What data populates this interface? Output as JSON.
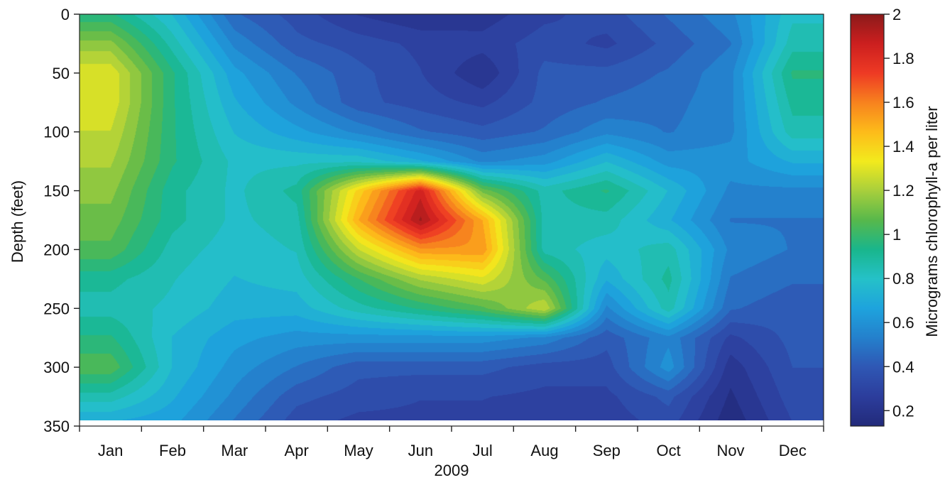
{
  "chart_data": {
    "type": "heatmap",
    "title": "",
    "xlabel": "2009",
    "ylabel": "Depth (feet)",
    "colorbar_label": "Micrograms chlorophyll-a per liter",
    "x_ticks": [
      "Jan",
      "Feb",
      "Mar",
      "Apr",
      "May",
      "Jun",
      "Jul",
      "Aug",
      "Sep",
      "Oct",
      "Nov",
      "Dec"
    ],
    "y_ticks": [
      0,
      50,
      100,
      150,
      200,
      250,
      300,
      350
    ],
    "ylim": [
      0,
      350
    ],
    "y_inverted": true,
    "colorbar_ticks": [
      0.2,
      0.4,
      0.6,
      0.8,
      1,
      1.2,
      1.4,
      1.6,
      1.8,
      2
    ],
    "colorbar_range": [
      0.13,
      2.0
    ],
    "colormap": [
      "#222a7a",
      "#2c3d9c",
      "#2f57b4",
      "#2480cc",
      "#1ea3dd",
      "#25c1c8",
      "#19b68c",
      "#57b84b",
      "#a8cf3c",
      "#f2ea1d",
      "#fdbb1a",
      "#f7821e",
      "#ee3a24",
      "#cc1f1f",
      "#8b1a1a"
    ],
    "depths": [
      0,
      25,
      50,
      75,
      100,
      125,
      150,
      175,
      200,
      225,
      250,
      275,
      300,
      325,
      345
    ],
    "months": [
      "Jan",
      "Feb",
      "Mar",
      "Apr",
      "May",
      "Jun",
      "Jul",
      "Aug",
      "Sep",
      "Oct",
      "Nov",
      "Dec"
    ],
    "values": [
      [
        0.95,
        0.75,
        0.45,
        0.35,
        0.25,
        0.2,
        0.22,
        0.3,
        0.35,
        0.45,
        0.55,
        0.8
      ],
      [
        1.15,
        0.85,
        0.55,
        0.4,
        0.35,
        0.3,
        0.28,
        0.35,
        0.3,
        0.4,
        0.5,
        0.85
      ],
      [
        1.3,
        0.95,
        0.65,
        0.5,
        0.4,
        0.32,
        0.2,
        0.4,
        0.4,
        0.45,
        0.55,
        0.95
      ],
      [
        1.3,
        0.95,
        0.7,
        0.55,
        0.4,
        0.35,
        0.3,
        0.4,
        0.45,
        0.48,
        0.55,
        0.9
      ],
      [
        1.25,
        0.95,
        0.75,
        0.65,
        0.55,
        0.45,
        0.4,
        0.45,
        0.55,
        0.5,
        0.55,
        0.85
      ],
      [
        1.2,
        0.95,
        0.8,
        0.8,
        0.8,
        0.7,
        0.55,
        0.6,
        0.75,
        0.6,
        0.6,
        0.7
      ],
      [
        1.15,
        0.9,
        0.8,
        0.9,
        1.4,
        1.85,
        1.1,
        0.85,
        0.95,
        0.75,
        0.55,
        0.55
      ],
      [
        1.1,
        0.9,
        0.8,
        0.85,
        1.5,
        1.95,
        1.5,
        0.85,
        0.85,
        0.7,
        0.5,
        0.5
      ],
      [
        1.05,
        0.85,
        0.78,
        0.82,
        1.25,
        1.55,
        1.55,
        0.85,
        0.78,
        0.85,
        0.55,
        0.5
      ],
      [
        0.9,
        0.82,
        0.75,
        0.78,
        1.0,
        1.2,
        1.3,
        1.05,
        0.7,
        0.9,
        0.5,
        0.45
      ],
      [
        0.85,
        0.8,
        0.72,
        0.72,
        0.85,
        0.95,
        1.05,
        1.25,
        0.55,
        0.85,
        0.45,
        0.4
      ],
      [
        0.95,
        0.75,
        0.65,
        0.6,
        0.6,
        0.6,
        0.6,
        0.55,
        0.4,
        0.55,
        0.3,
        0.4
      ],
      [
        1.05,
        0.75,
        0.6,
        0.5,
        0.4,
        0.4,
        0.4,
        0.35,
        0.35,
        0.6,
        0.22,
        0.38
      ],
      [
        0.85,
        0.7,
        0.55,
        0.4,
        0.35,
        0.32,
        0.32,
        0.3,
        0.3,
        0.4,
        0.18,
        0.35
      ],
      [
        0.7,
        0.65,
        0.5,
        0.35,
        0.3,
        0.3,
        0.3,
        0.28,
        0.28,
        0.35,
        0.15,
        0.32
      ]
    ]
  }
}
